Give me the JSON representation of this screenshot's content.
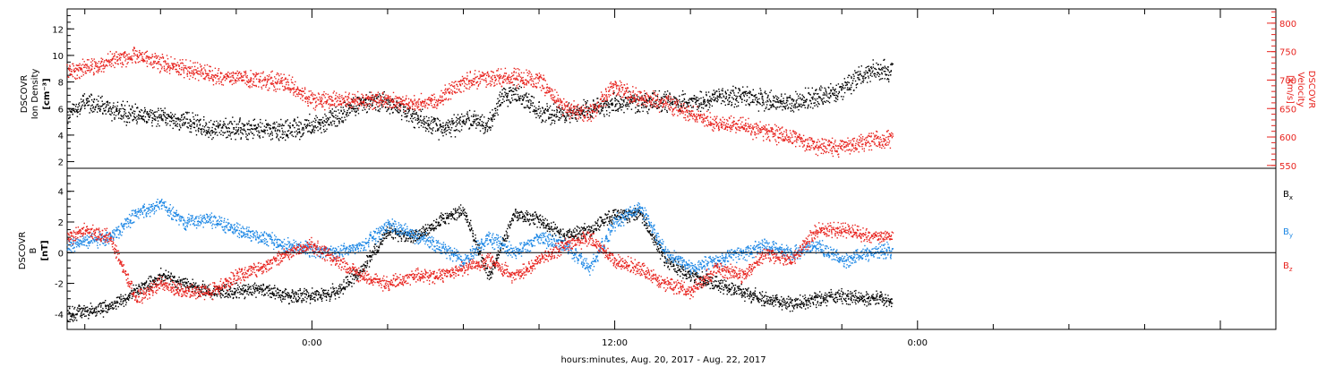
{
  "figure": {
    "xlabel": "hours:minutes, Aug. 20, 2017 - Aug. 22, 2017",
    "time_ticks": [
      "0:00",
      "12:00",
      "0:00"
    ]
  },
  "colors": {
    "black": "#000000",
    "red": "#e8231e",
    "blue": "#1e88e5"
  },
  "chart_data": [
    {
      "type": "scatter",
      "panel": "top",
      "ylabel": [
        "DSCOVR",
        "Ion Density",
        "[cm⁻³]"
      ],
      "ylim": [
        1.5,
        13.5
      ],
      "yticks": [
        2,
        4,
        6,
        8,
        10,
        12
      ],
      "y2label": [
        "DSCOVR",
        "Velocity",
        "[km/s]"
      ],
      "y2lim": [
        545,
        825
      ],
      "y2ticks": [
        550,
        600,
        650,
        700,
        750,
        800
      ],
      "x_unit": "hours after Aug. 20, 2017 0:00",
      "xlim": [
        14.3,
        62.2
      ],
      "grid": false,
      "series": [
        {
          "name": "Ion Density",
          "axis": "left",
          "color": "black",
          "x": [
            14.3,
            15.0,
            16.0,
            17.0,
            18.0,
            19.0,
            20.0,
            21.0,
            22.0,
            23.0,
            24.0,
            25.0,
            26.0,
            27.0,
            28.0,
            29.0,
            29.5,
            30.0,
            30.5,
            31.0,
            31.5,
            32.0,
            33.0,
            34.0,
            35.0,
            36.0,
            37.0,
            38.0,
            39.0,
            40.0,
            41.0,
            42.0,
            43.0,
            44.0,
            45.0,
            46.0,
            47.0
          ],
          "y": [
            5.5,
            6.5,
            6.0,
            5.5,
            5.5,
            5.0,
            4.5,
            4.5,
            4.5,
            4.4,
            4.8,
            5.5,
            6.5,
            6.5,
            5.5,
            4.5,
            4.6,
            5.2,
            5.0,
            4.8,
            6.9,
            7.2,
            5.8,
            5.5,
            6.0,
            6.4,
            6.6,
            6.5,
            6.5,
            6.8,
            7.0,
            6.6,
            6.5,
            6.9,
            7.5,
            8.8,
            9.0
          ]
        },
        {
          "name": "Velocity",
          "axis": "right",
          "color": "red",
          "x": [
            14.3,
            15.0,
            16.0,
            17.0,
            18.0,
            19.0,
            20.0,
            21.0,
            22.0,
            23.0,
            24.0,
            25.0,
            26.0,
            27.0,
            28.0,
            29.0,
            30.0,
            31.0,
            32.0,
            33.0,
            34.0,
            35.0,
            36.0,
            37.0,
            38.0,
            39.0,
            40.0,
            41.0,
            42.0,
            43.0,
            44.0,
            45.0,
            46.0,
            47.0
          ],
          "y": [
            715,
            720,
            735,
            745,
            730,
            720,
            710,
            705,
            700,
            695,
            665,
            665,
            665,
            665,
            660,
            665,
            700,
            705,
            705,
            700,
            650,
            640,
            690,
            670,
            660,
            640,
            625,
            620,
            610,
            600,
            585,
            580,
            595,
            595
          ]
        }
      ]
    },
    {
      "type": "scatter",
      "panel": "bottom",
      "ylabel": [
        "DSCOVR",
        "B",
        "[nT]"
      ],
      "ylim": [
        -5.0,
        5.5
      ],
      "yticks": [
        -4,
        -2,
        0,
        2,
        4
      ],
      "zero_line": true,
      "x_unit": "hours after Aug. 20, 2017 0:00",
      "xlim": [
        14.3,
        62.2
      ],
      "grid": false,
      "series": [
        {
          "name": "Bx",
          "color": "black",
          "x": [
            14.3,
            15.0,
            16.0,
            17.0,
            18.0,
            19.0,
            20.0,
            21.0,
            22.0,
            23.0,
            24.0,
            25.0,
            26.0,
            27.0,
            28.0,
            29.0,
            30.0,
            31.0,
            32.0,
            33.0,
            34.0,
            35.0,
            36.0,
            37.0,
            38.0,
            39.0,
            40.0,
            41.0,
            42.0,
            43.0,
            44.0,
            45.0,
            46.0,
            47.0
          ],
          "y": [
            -4.0,
            -3.8,
            -3.5,
            -2.5,
            -1.5,
            -2.0,
            -2.5,
            -2.5,
            -2.3,
            -2.8,
            -2.8,
            -2.5,
            -1.0,
            1.5,
            1.0,
            2.0,
            2.8,
            -1.5,
            2.5,
            2.2,
            1.0,
            1.5,
            2.5,
            2.5,
            -0.5,
            -1.5,
            -2.0,
            -2.5,
            -3.0,
            -3.3,
            -3.0,
            -2.8,
            -3.0,
            -3.0
          ]
        },
        {
          "name": "By",
          "color": "blue",
          "x": [
            14.3,
            15.0,
            16.0,
            17.0,
            18.0,
            19.0,
            20.0,
            21.0,
            22.0,
            23.0,
            24.0,
            25.0,
            26.0,
            27.0,
            28.0,
            29.0,
            30.0,
            31.0,
            32.0,
            33.0,
            34.0,
            35.0,
            36.0,
            37.0,
            38.0,
            39.0,
            40.0,
            41.0,
            42.0,
            43.0,
            44.0,
            45.0,
            46.0,
            47.0
          ],
          "y": [
            0.5,
            0.8,
            1.0,
            2.5,
            3.2,
            2.0,
            2.2,
            1.5,
            1.0,
            0.5,
            0.2,
            0.0,
            0.5,
            1.8,
            1.2,
            0.5,
            -0.5,
            1.0,
            0.0,
            1.0,
            0.5,
            -1.0,
            2.0,
            3.0,
            0.0,
            -1.0,
            -0.5,
            0.0,
            0.5,
            0.0,
            0.5,
            -0.5,
            0.0,
            0.2
          ]
        },
        {
          "name": "Bz",
          "color": "red",
          "x": [
            14.3,
            15.0,
            16.0,
            17.0,
            18.0,
            19.0,
            20.0,
            21.0,
            22.0,
            23.0,
            24.0,
            25.0,
            26.0,
            27.0,
            28.0,
            29.0,
            30.0,
            31.0,
            32.0,
            33.0,
            34.0,
            35.0,
            36.0,
            37.0,
            38.0,
            39.0,
            40.0,
            41.0,
            42.0,
            43.0,
            44.0,
            45.0,
            46.0,
            47.0
          ],
          "y": [
            1.0,
            1.5,
            1.0,
            -3.0,
            -2.0,
            -2.5,
            -2.5,
            -1.5,
            -1.0,
            0.0,
            0.5,
            -0.5,
            -1.5,
            -2.0,
            -1.5,
            -1.5,
            -1.0,
            -0.5,
            -1.5,
            -0.5,
            0.5,
            1.0,
            -0.5,
            -1.0,
            -2.0,
            -2.5,
            -1.0,
            -1.5,
            0.0,
            -0.5,
            1.5,
            1.5,
            1.2,
            1.0
          ]
        }
      ],
      "legend": [
        "Bx",
        "By",
        "Bz"
      ]
    }
  ],
  "legend_labels": [
    {
      "base": "B",
      "sub": "x",
      "color": "black"
    },
    {
      "base": "B",
      "sub": "y",
      "color": "blue"
    },
    {
      "base": "B",
      "sub": "z",
      "color": "red"
    }
  ]
}
